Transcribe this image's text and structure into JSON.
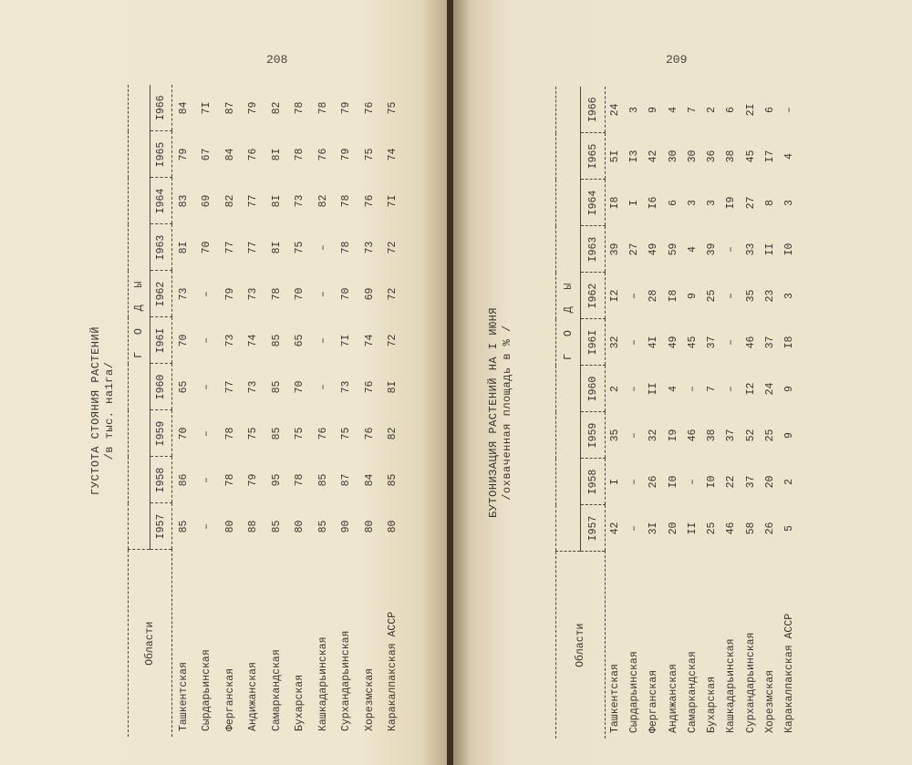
{
  "left_page": {
    "page_number": "208",
    "title": "ГУСТОТА СТОЯНИЯ РАСТЕНИЙ",
    "subtitle": "/в тыс. на1га/",
    "header_region": "Области",
    "header_years": "Г О Д Ы",
    "years": [
      "I957",
      "I958",
      "I959",
      "I960",
      "I96I",
      "I962",
      "I963",
      "I964",
      "I965",
      "I966"
    ],
    "rows": [
      {
        "region": "Ташкентская",
        "values": [
          "85",
          "86",
          "70",
          "65",
          "70",
          "73",
          "8I",
          "83",
          "79",
          "84"
        ]
      },
      {
        "region": "Сырдарьинская",
        "values": [
          "–",
          "–",
          "–",
          "–",
          "–",
          "–",
          "70",
          "69",
          "67",
          "7I"
        ]
      },
      {
        "region": "Ферганская",
        "values": [
          "80",
          "78",
          "78",
          "77",
          "73",
          "79",
          "77",
          "82",
          "84",
          "87"
        ]
      },
      {
        "region": "Андижанская",
        "values": [
          "88",
          "79",
          "75",
          "73",
          "74",
          "73",
          "77",
          "77",
          "76",
          "79"
        ]
      },
      {
        "region": "Самаркандская",
        "values": [
          "85",
          "95",
          "85",
          "85",
          "85",
          "78",
          "8I",
          "8I",
          "8I",
          "82"
        ]
      },
      {
        "region": "Бухарская",
        "values": [
          "80",
          "78",
          "75",
          "70",
          "65",
          "70",
          "75",
          "73",
          "78",
          "78"
        ]
      },
      {
        "region": "Кашкадарьинская",
        "values": [
          "85",
          "85",
          "76",
          "–",
          "–",
          "–",
          "–",
          "82",
          "76",
          "78"
        ]
      },
      {
        "region": "Сурхандарьинская",
        "values": [
          "90",
          "87",
          "75",
          "73",
          "7I",
          "70",
          "78",
          "78",
          "79",
          "79"
        ]
      },
      {
        "region": "Хорезмская",
        "values": [
          "80",
          "84",
          "76",
          "76",
          "74",
          "69",
          "73",
          "76",
          "75",
          "76"
        ]
      },
      {
        "region": "Каракалпакская АССР",
        "values": [
          "80",
          "85",
          "82",
          "8I",
          "72",
          "72",
          "72",
          "7I",
          "74",
          "75"
        ]
      }
    ]
  },
  "right_page": {
    "page_number": "209",
    "title": "БУТОНИЗАЦИЯ РАСТЕНИЙ НА I ИЮНЯ",
    "subtitle": "/охваченная площадь в % /",
    "header_region": "Области",
    "header_years": "Г О Д Ы",
    "years": [
      "I957",
      "I958",
      "I959",
      "I960",
      "I96I",
      "I962",
      "I963",
      "I964",
      "I965",
      "I966"
    ],
    "rows": [
      {
        "region": "Ташкентская",
        "values": [
          "42",
          "I",
          "35",
          "2",
          "32",
          "I2",
          "39",
          "I8",
          "5I",
          "24"
        ]
      },
      {
        "region": "Сырдарьинская",
        "values": [
          "–",
          "–",
          "–",
          "–",
          "–",
          "–",
          "27",
          "I",
          "I3",
          "3"
        ]
      },
      {
        "region": "Ферганская",
        "values": [
          "3I",
          "26",
          "32",
          "II",
          "4I",
          "28",
          "49",
          "I6",
          "42",
          "9"
        ]
      },
      {
        "region": "Андижанская",
        "values": [
          "20",
          "I0",
          "I9",
          "4",
          "49",
          "I8",
          "59",
          "6",
          "30",
          "4"
        ]
      },
      {
        "region": "Самаркандская",
        "values": [
          "II",
          "–",
          "46",
          "–",
          "45",
          "9",
          "4",
          "3",
          "30",
          "7"
        ]
      },
      {
        "region": "Бухарская",
        "values": [
          "25",
          "I0",
          "38",
          "7",
          "37",
          "25",
          "39",
          "3",
          "36",
          "2"
        ]
      },
      {
        "region": "Кашкадарьинская",
        "values": [
          "46",
          "22",
          "37",
          "–",
          "–",
          "–",
          "–",
          "I9",
          "38",
          "6"
        ]
      },
      {
        "region": "Сурхандарьинская",
        "values": [
          "58",
          "37",
          "52",
          "I2",
          "46",
          "35",
          "33",
          "27",
          "45",
          "2I"
        ]
      },
      {
        "region": "Хорезмская",
        "values": [
          "26",
          "20",
          "25",
          "24",
          "37",
          "23",
          "II",
          "8",
          "I7",
          "6"
        ]
      },
      {
        "region": "Каракалпакская АССР",
        "values": [
          "5",
          "2",
          "9",
          "9",
          "I8",
          "3",
          "I0",
          "3",
          "4",
          "–"
        ]
      }
    ]
  }
}
